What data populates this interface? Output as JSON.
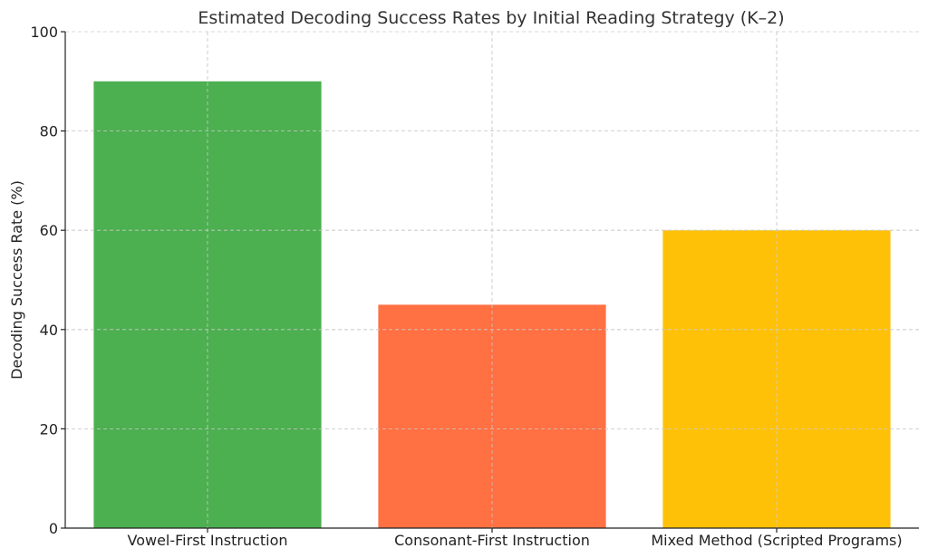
{
  "chart_data": {
    "type": "bar",
    "title": "Estimated Decoding Success Rates by Initial Reading Strategy (K–2)",
    "xlabel": "",
    "ylabel": "Decoding Success Rate (%)",
    "categories": [
      "Vowel-First Instruction",
      "Consonant-First Instruction",
      "Mixed Method (Scripted Programs)"
    ],
    "values": [
      90,
      45,
      60
    ],
    "colors": [
      "#4caf50",
      "#ff7043",
      "#ffc107"
    ],
    "ylim": [
      0,
      100
    ],
    "yticks": [
      0,
      20,
      40,
      60,
      80,
      100
    ],
    "grid": true,
    "legend": "none"
  }
}
